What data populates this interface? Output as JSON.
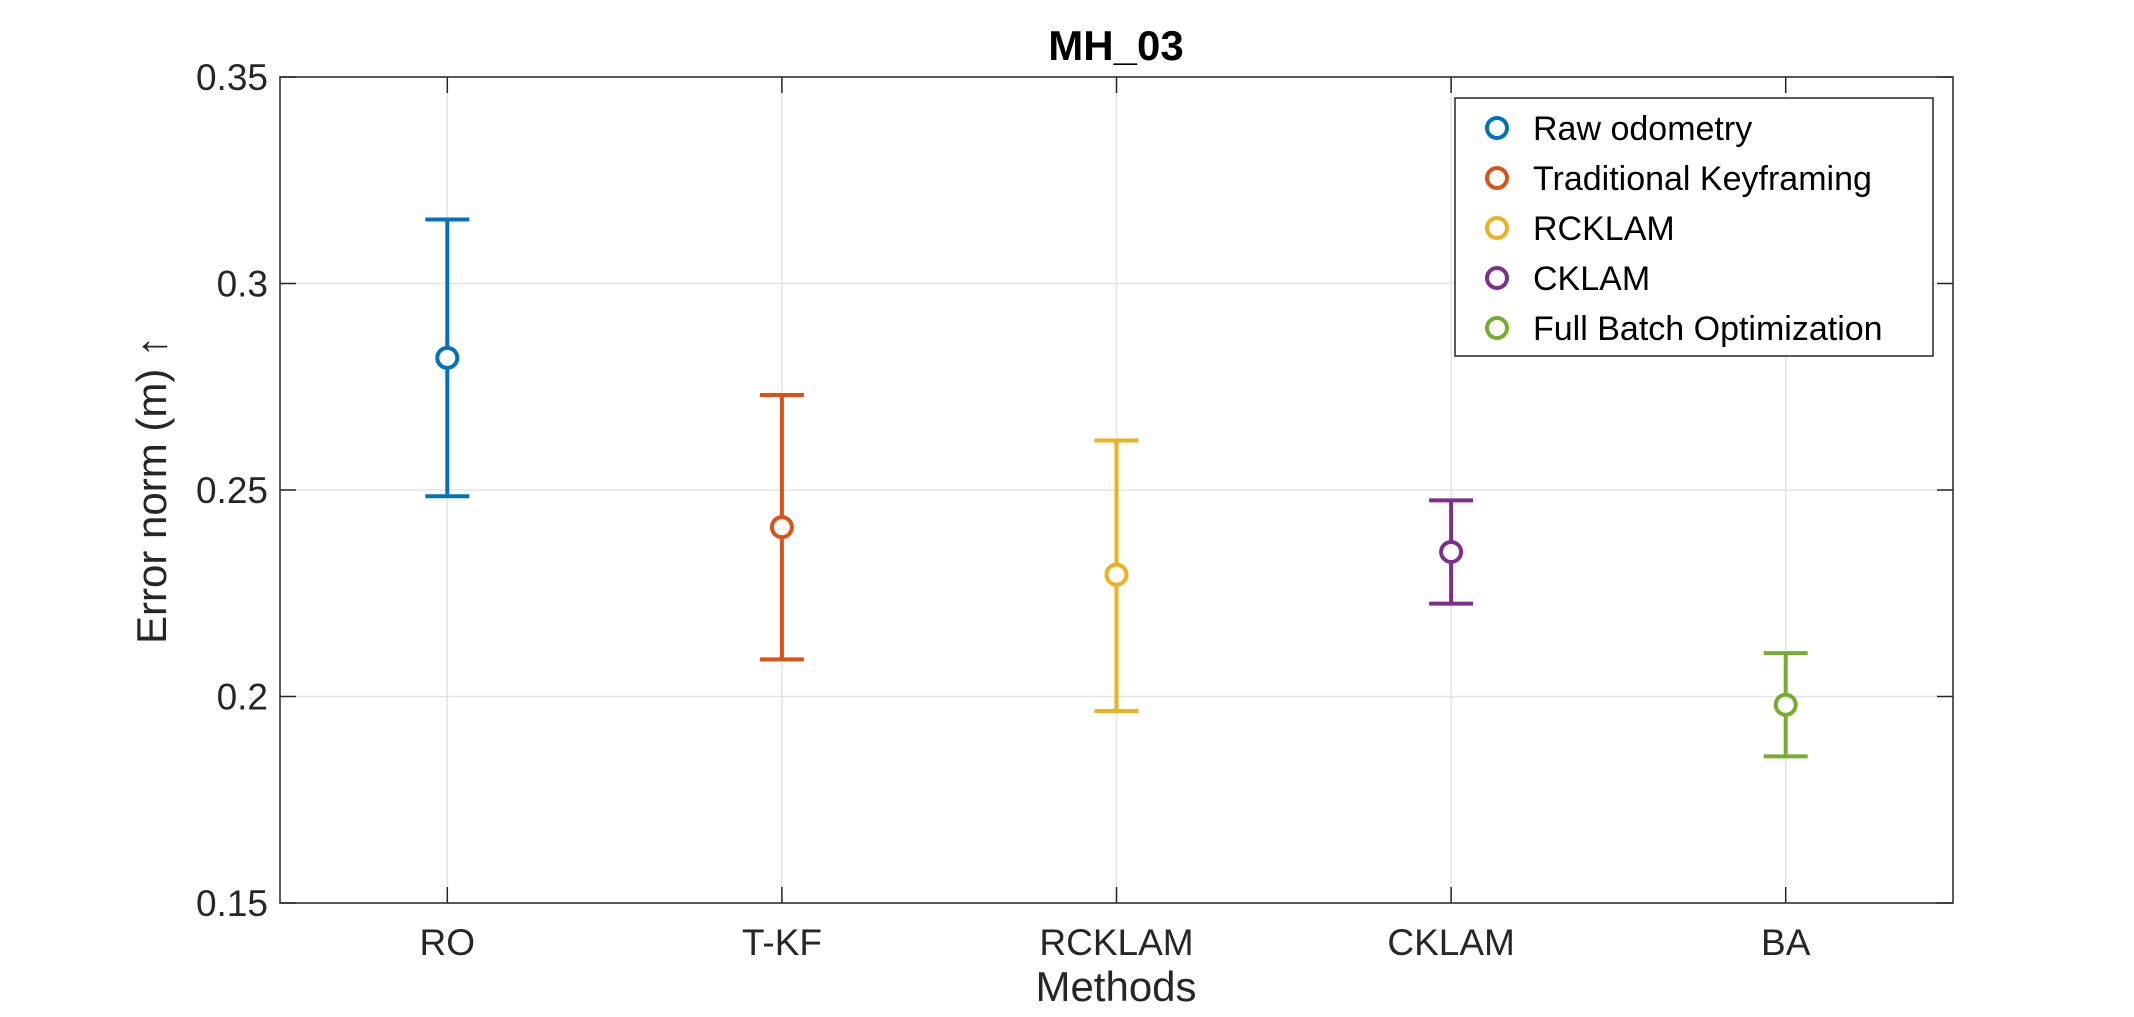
{
  "chart_data": {
    "type": "scatter",
    "title": "MH_03",
    "xlabel": "Methods",
    "ylabel": "Error norm (m) ↑",
    "categories": [
      "RO",
      "T-KF",
      "RCKLAM",
      "CKLAM",
      "BA"
    ],
    "ylim": [
      0.15,
      0.35
    ],
    "yticks": [
      0.15,
      0.2,
      0.25,
      0.3,
      0.35
    ],
    "ytick_labels": [
      "0.15",
      "0.2",
      "0.25",
      "0.3",
      "0.35"
    ],
    "grid": true,
    "legend_position": "top-right",
    "series": [
      {
        "name": "Raw odometry",
        "category": "RO",
        "mean": 0.282,
        "lower": 0.2485,
        "upper": 0.3155,
        "color": "#0072BD"
      },
      {
        "name": "Traditional Keyframing",
        "category": "T-KF",
        "mean": 0.241,
        "lower": 0.209,
        "upper": 0.273,
        "color": "#D95319"
      },
      {
        "name": "RCKLAM",
        "category": "RCKLAM",
        "mean": 0.2295,
        "lower": 0.1965,
        "upper": 0.262,
        "color": "#EDB120"
      },
      {
        "name": "CKLAM",
        "category": "CKLAM",
        "mean": 0.235,
        "lower": 0.2225,
        "upper": 0.2475,
        "color": "#7E2F8E"
      },
      {
        "name": "Full Batch Optimization",
        "category": "BA",
        "mean": 0.198,
        "lower": 0.1855,
        "upper": 0.2105,
        "color": "#77AC30"
      }
    ]
  }
}
